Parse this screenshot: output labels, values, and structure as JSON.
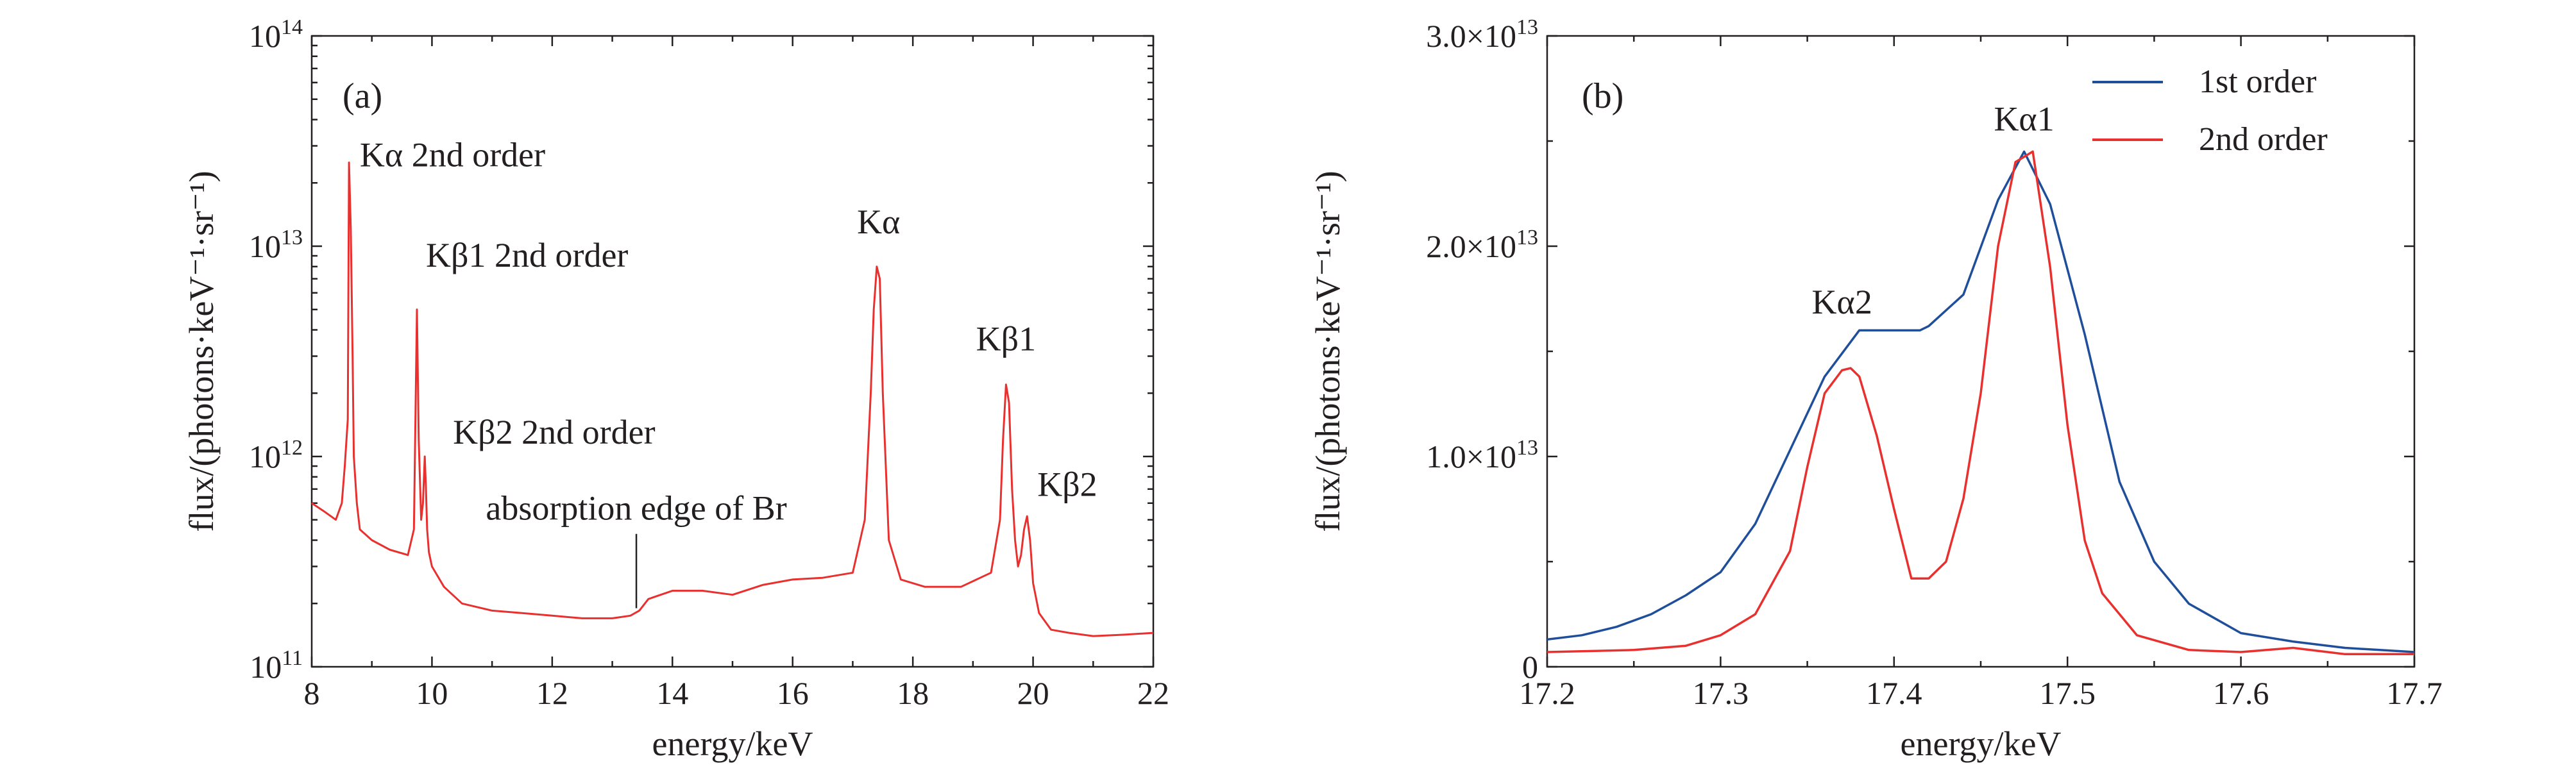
{
  "chart_data": [
    {
      "type": "line",
      "panel_label": "(a)",
      "xlabel": "energy/keV",
      "ylabel": "flux/(photons·keV⁻¹·sr⁻¹)",
      "xlim": [
        8,
        22
      ],
      "ylim": [
        100000000000.0,
        100000000000000.0
      ],
      "yscale": "log",
      "x_ticks": [
        8,
        10,
        12,
        14,
        16,
        18,
        20,
        22
      ],
      "x_tick_labels": [
        "8",
        "10",
        "12",
        "14",
        "16",
        "18",
        "20",
        "22"
      ],
      "y_ticks": [
        100000000000.0,
        1000000000000.0,
        10000000000000.0,
        100000000000000.0
      ],
      "y_tick_labels": [
        {
          "base": "10",
          "exp": "11"
        },
        {
          "base": "10",
          "exp": "12"
        },
        {
          "base": "10",
          "exp": "13"
        },
        {
          "base": "10",
          "exp": "14"
        }
      ],
      "grid": false,
      "series": [
        {
          "color": "#e8312f",
          "x": [
            8.0,
            8.2,
            8.4,
            8.5,
            8.55,
            8.6,
            8.62,
            8.65,
            8.68,
            8.7,
            8.75,
            8.8,
            9.0,
            9.3,
            9.6,
            9.7,
            9.75,
            9.78,
            9.82,
            9.85,
            9.88,
            9.9,
            9.92,
            9.95,
            10.0,
            10.2,
            10.5,
            11.0,
            11.5,
            12.0,
            12.5,
            13.0,
            13.3,
            13.45,
            13.6,
            14.0,
            14.5,
            15.0,
            15.5,
            16.0,
            16.5,
            17.0,
            17.2,
            17.3,
            17.35,
            17.4,
            17.45,
            17.5,
            17.6,
            17.8,
            18.2,
            18.8,
            19.3,
            19.45,
            19.5,
            19.55,
            19.6,
            19.65,
            19.7,
            19.75,
            19.8,
            19.85,
            19.9,
            19.95,
            20.0,
            20.1,
            20.3,
            20.6,
            21.0,
            21.5,
            22.0
          ],
          "y": [
            600000000000.0,
            550000000000.0,
            500000000000.0,
            600000000000.0,
            900000000000.0,
            1500000000000.0,
            25000000000000.0,
            12000000000000.0,
            3000000000000.0,
            1000000000000.0,
            600000000000.0,
            450000000000.0,
            400000000000.0,
            360000000000.0,
            340000000000.0,
            450000000000.0,
            5000000000000.0,
            1200000000000.0,
            500000000000.0,
            600000000000.0,
            1000000000000.0,
            700000000000.0,
            450000000000.0,
            350000000000.0,
            300000000000.0,
            240000000000.0,
            200000000000.0,
            185000000000.0,
            180000000000.0,
            175000000000.0,
            170000000000.0,
            170000000000.0,
            175000000000.0,
            185000000000.0,
            210000000000.0,
            230000000000.0,
            230000000000.0,
            220000000000.0,
            245000000000.0,
            260000000000.0,
            265000000000.0,
            280000000000.0,
            500000000000.0,
            2000000000000.0,
            5000000000000.0,
            8000000000000.0,
            7000000000000.0,
            2000000000000.0,
            400000000000.0,
            260000000000.0,
            240000000000.0,
            240000000000.0,
            280000000000.0,
            500000000000.0,
            1200000000000.0,
            2200000000000.0,
            1800000000000.0,
            700000000000.0,
            400000000000.0,
            300000000000.0,
            340000000000.0,
            450000000000.0,
            520000000000.0,
            400000000000.0,
            250000000000.0,
            180000000000.0,
            150000000000.0,
            145000000000.0,
            140000000000.0,
            142000000000.0,
            145000000000.0
          ]
        }
      ],
      "annotations": [
        {
          "text": "Kα 2nd order",
          "x": 8.65,
          "y": 24000000000000.0
        },
        {
          "text": "Kβ1 2nd order",
          "x": 9.75,
          "y": 8000000000000.0
        },
        {
          "text": "Kβ2 2nd order",
          "x": 10.2,
          "y": 1150000000000.0
        },
        {
          "text": "absorption edge of Br",
          "x": 13.4,
          "y": 500000000000.0
        },
        {
          "text": "Kα",
          "x": 17.43,
          "y": 11500000000000.0
        },
        {
          "text": "Kβ1",
          "x": 19.55,
          "y": 3200000000000.0
        },
        {
          "text": "Kβ2",
          "x": 19.9,
          "y": 650000000000.0
        }
      ]
    },
    {
      "type": "line",
      "panel_label": "(b)",
      "xlabel": "energy/keV",
      "ylabel": "flux/(photons·keV⁻¹·sr⁻¹)",
      "xlim": [
        17.2,
        17.7
      ],
      "ylim": [
        0,
        30000000000000.0
      ],
      "x_ticks": [
        17.2,
        17.3,
        17.4,
        17.5,
        17.6,
        17.7
      ],
      "x_tick_labels": [
        "17.2",
        "17.3",
        "17.4",
        "17.5",
        "17.6",
        "17.7"
      ],
      "y_ticks": [
        0,
        10000000000000.0,
        20000000000000.0,
        30000000000000.0
      ],
      "y_tick_labels": [
        {
          "base": "0",
          "exp": ""
        },
        {
          "base": "1.0×10",
          "exp": "13"
        },
        {
          "base": "2.0×10",
          "exp": "13"
        },
        {
          "base": "3.0×10",
          "exp": "13"
        }
      ],
      "grid": false,
      "legend_position": "top-right",
      "series": [
        {
          "name": "1st order",
          "color": "#1f4e9b",
          "x": [
            17.2,
            17.22,
            17.24,
            17.26,
            17.28,
            17.3,
            17.32,
            17.34,
            17.36,
            17.38,
            17.4,
            17.415,
            17.42,
            17.44,
            17.46,
            17.475,
            17.49,
            17.51,
            17.53,
            17.55,
            17.57,
            17.6,
            17.63,
            17.66,
            17.7
          ],
          "y": [
            1300000000000.0,
            1500000000000.0,
            1900000000000.0,
            2500000000000.0,
            3400000000000.0,
            4500000000000.0,
            6800000000000.0,
            10300000000000.0,
            13800000000000.0,
            16000000000000.0,
            16000000000000.0,
            16000000000000.0,
            16200000000000.0,
            17700000000000.0,
            22200000000000.0,
            24500000000000.0,
            22000000000000.0,
            15800000000000.0,
            8800000000000.0,
            5000000000000.0,
            3000000000000.0,
            1600000000000.0,
            1200000000000.0,
            900000000000.0,
            700000000000.0
          ]
        },
        {
          "name": "2nd order",
          "color": "#e8312f",
          "x": [
            17.2,
            17.25,
            17.28,
            17.3,
            17.32,
            17.34,
            17.35,
            17.36,
            17.37,
            17.375,
            17.38,
            17.39,
            17.4,
            17.41,
            17.42,
            17.43,
            17.44,
            17.45,
            17.46,
            17.47,
            17.48,
            17.49,
            17.5,
            17.51,
            17.52,
            17.54,
            17.57,
            17.6,
            17.63,
            17.66,
            17.7
          ],
          "y": [
            700000000000.0,
            800000000000.0,
            1000000000000.0,
            1500000000000.0,
            2500000000000.0,
            5500000000000.0,
            9500000000000.0,
            13000000000000.0,
            14100000000000.0,
            14200000000000.0,
            13800000000000.0,
            11000000000000.0,
            7500000000000.0,
            4200000000000.0,
            4200000000000.0,
            5000000000000.0,
            8000000000000.0,
            13000000000000.0,
            20000000000000.0,
            24000000000000.0,
            24500000000000.0,
            19000000000000.0,
            11500000000000.0,
            6000000000000.0,
            3500000000000.0,
            1500000000000.0,
            800000000000.0,
            700000000000.0,
            900000000000.0,
            600000000000.0,
            600000000000.0
          ]
        }
      ],
      "annotations": [
        {
          "text": "Kα2",
          "x": 17.37,
          "y": 16800000000000.0
        },
        {
          "text": "Kα1",
          "x": 17.475,
          "y": 25500000000000.0
        }
      ]
    }
  ]
}
